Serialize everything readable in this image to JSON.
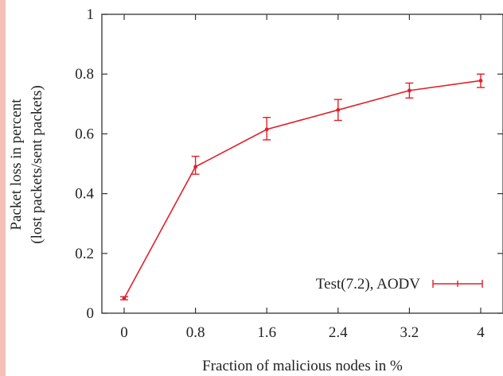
{
  "chart_data": {
    "type": "line",
    "x": [
      "0",
      "0.8",
      "1.6",
      "2.4",
      "3.2",
      "4"
    ],
    "xlabel": "Fraction of malicious nodes in %",
    "ylabel": [
      "Packet loss in percent",
      "(lost packets/sent packets)"
    ],
    "ylim": [
      0,
      1
    ],
    "yticks": [
      "0",
      "0.2",
      "0.4",
      "0.6",
      "0.8",
      "1"
    ],
    "series": [
      {
        "name": "Test(7.2), AODV",
        "values": [
          0.05,
          0.49,
          0.615,
          0.68,
          0.745,
          0.778
        ],
        "error_low": [
          0.045,
          0.465,
          0.58,
          0.645,
          0.72,
          0.755
        ],
        "error_high": [
          0.055,
          0.525,
          0.655,
          0.715,
          0.77,
          0.8
        ],
        "color": "#e0202a"
      }
    ],
    "legend": "bottom-right",
    "grid": false
  }
}
